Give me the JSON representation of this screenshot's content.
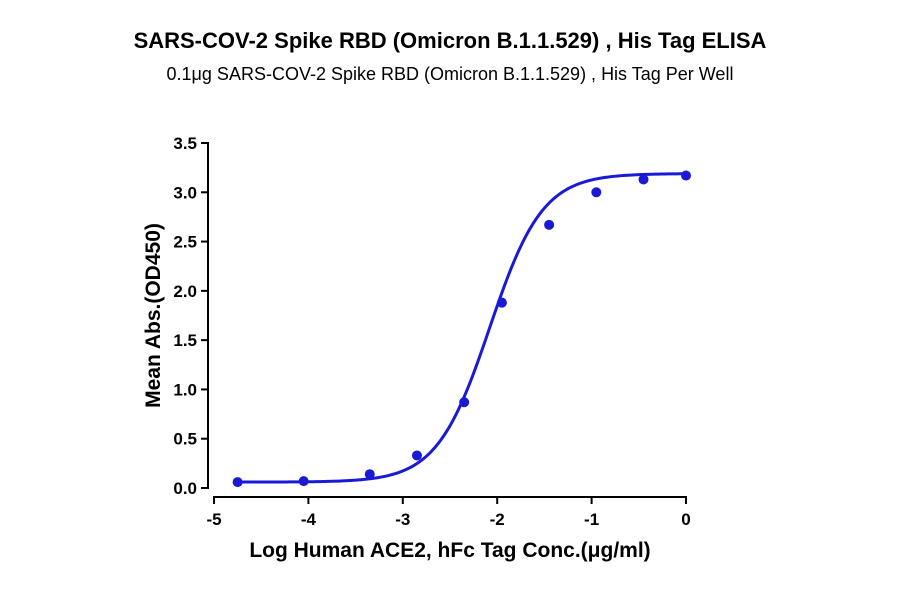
{
  "chart_data": {
    "type": "scatter",
    "title": "SARS-COV-2 Spike RBD (Omicron B.1.1.529) , His Tag ELISA",
    "subtitle": "0.1μg SARS-COV-2 Spike RBD (Omicron B.1.1.529) , His Tag Per Well",
    "xlabel": "Log Human ACE2, hFc Tag Conc.(μg/ml)",
    "ylabel": "Mean Abs.(OD450)",
    "xlim": [
      -5,
      0
    ],
    "ylim": [
      0,
      3.5
    ],
    "x_ticks": [
      -5,
      -4,
      -3,
      -2,
      -1,
      0
    ],
    "x_tick_labels": [
      "-5",
      "-4",
      "-3",
      "-2",
      "-1",
      "0"
    ],
    "y_ticks": [
      0,
      0.5,
      1,
      1.5,
      2,
      2.5,
      3,
      3.5
    ],
    "y_tick_labels": [
      "0.0",
      "0.5",
      "1.0",
      "1.5",
      "2.0",
      "2.5",
      "3.0",
      "3.5"
    ],
    "grid": false,
    "color": "#1a1ad6",
    "series": [
      {
        "x": [
          -4.75,
          -4.05,
          -3.35,
          -2.85,
          -2.35,
          -1.95,
          -1.45,
          -0.95,
          -0.45,
          0.0
        ],
        "y": [
          0.06,
          0.07,
          0.14,
          0.33,
          0.87,
          1.88,
          2.67,
          3.0,
          3.13,
          3.17
        ],
        "fit": "4PL sigmoid"
      }
    ]
  }
}
